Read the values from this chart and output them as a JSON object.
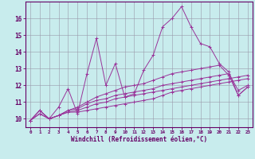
{
  "xlabel": "Windchill (Refroidissement éolien,°C)",
  "ylabel": "",
  "bg_color": "#c8eced",
  "line_color": "#993399",
  "grid_color": "#9999aa",
  "xlim": [
    -0.5,
    23.5
  ],
  "ylim": [
    9.5,
    17.0
  ],
  "xticks": [
    0,
    1,
    2,
    3,
    4,
    5,
    6,
    7,
    8,
    9,
    10,
    11,
    12,
    13,
    14,
    15,
    16,
    17,
    18,
    19,
    20,
    21,
    22,
    23
  ],
  "yticks": [
    10,
    11,
    12,
    13,
    14,
    15,
    16
  ],
  "series": [
    [
      9.9,
      10.5,
      10.0,
      10.7,
      11.8,
      10.3,
      12.7,
      14.8,
      12.0,
      13.3,
      11.3,
      11.5,
      12.9,
      13.8,
      15.5,
      16.0,
      16.7,
      15.5,
      14.5,
      14.3,
      13.3,
      12.8,
      11.4,
      11.9
    ],
    [
      9.9,
      10.5,
      10.0,
      10.2,
      10.4,
      10.4,
      10.5,
      10.6,
      10.7,
      10.8,
      10.9,
      11.0,
      11.1,
      11.2,
      11.4,
      11.6,
      11.7,
      11.8,
      11.9,
      12.0,
      12.1,
      12.2,
      12.3,
      12.4
    ],
    [
      9.9,
      10.3,
      10.0,
      10.2,
      10.4,
      10.5,
      10.7,
      10.9,
      11.0,
      11.2,
      11.3,
      11.4,
      11.5,
      11.6,
      11.7,
      11.8,
      11.9,
      12.0,
      12.1,
      12.2,
      12.3,
      12.4,
      12.5,
      12.6
    ],
    [
      9.9,
      10.3,
      10.0,
      10.2,
      10.5,
      10.6,
      10.9,
      11.1,
      11.2,
      11.4,
      11.5,
      11.6,
      11.7,
      11.8,
      12.0,
      12.1,
      12.2,
      12.3,
      12.4,
      12.5,
      12.6,
      12.7,
      11.7,
      12.0
    ],
    [
      9.9,
      10.5,
      10.0,
      10.2,
      10.5,
      10.7,
      11.0,
      11.3,
      11.5,
      11.7,
      11.9,
      12.0,
      12.1,
      12.3,
      12.5,
      12.7,
      12.8,
      12.9,
      13.0,
      13.1,
      13.2,
      12.6,
      11.4,
      11.9
    ]
  ],
  "spine_color": "#660066",
  "tick_color": "#660066",
  "label_color": "#660066",
  "xlabel_fontsize": 5.5,
  "ytick_fontsize": 5.5,
  "xtick_fontsize": 4.2,
  "lw": 0.7,
  "marker_size": 2.5,
  "marker_ew": 0.7
}
